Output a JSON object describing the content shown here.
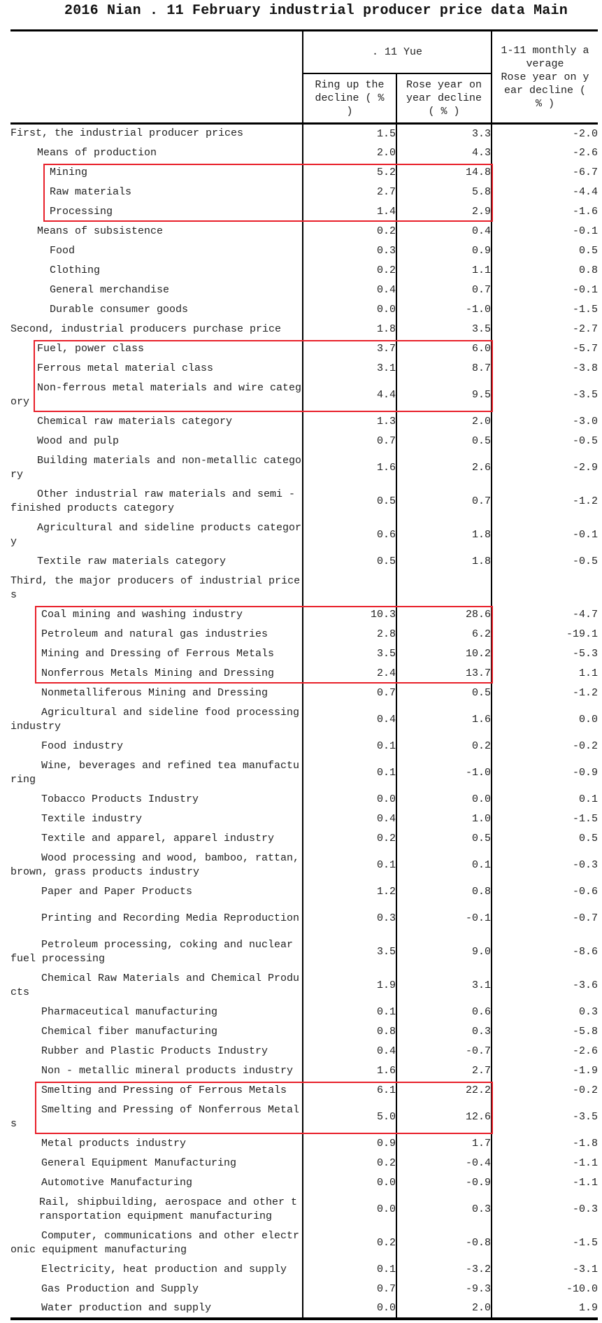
{
  "title": "2016 Nian . 11 February industrial producer price data Main",
  "header": {
    "month_group": ". 11 Yue",
    "col_mom": "Ring up the decline ( % )",
    "col_yoy": "Rose year on year decline ( % )",
    "col_avg_top": "1-11 monthly average",
    "col_avg_bottom": "Rose year on year decline ( % )"
  },
  "highlight_color": "#e8202a",
  "rows": [
    {
      "label": "First, the industrial producer prices",
      "level": 0,
      "mom": "1.5",
      "yoy": "3.3",
      "avg": "-2.0"
    },
    {
      "label": "Means of production",
      "level": 1,
      "mom": "2.0",
      "yoy": "4.3",
      "avg": "-2.6"
    },
    {
      "label": "Mining",
      "level": 2,
      "mom": "5.2",
      "yoy": "14.8",
      "avg": "-6.7",
      "highlight": 1
    },
    {
      "label": "Raw materials",
      "level": 2,
      "mom": "2.7",
      "yoy": "5.8",
      "avg": "-4.4",
      "highlight": 1
    },
    {
      "label": "Processing",
      "level": 2,
      "mom": "1.4",
      "yoy": "2.9",
      "avg": "-1.6",
      "highlight": 1
    },
    {
      "label": "Means of subsistence",
      "level": 1,
      "mom": "0.2",
      "yoy": "0.4",
      "avg": "-0.1"
    },
    {
      "label": "Food",
      "level": 2,
      "mom": "0.3",
      "yoy": "0.9",
      "avg": "0.5"
    },
    {
      "label": "Clothing",
      "level": 2,
      "mom": "0.2",
      "yoy": "1.1",
      "avg": "0.8"
    },
    {
      "label": "General merchandise",
      "level": 2,
      "mom": "0.4",
      "yoy": "0.7",
      "avg": "-0.1"
    },
    {
      "label": "Durable consumer goods",
      "level": 2,
      "mom": "0.0",
      "yoy": "-1.0",
      "avg": "-1.5"
    },
    {
      "label": "Second, industrial producers purchase price",
      "level": 0,
      "mom": "1.8",
      "yoy": "3.5",
      "avg": "-2.7"
    },
    {
      "label": "Fuel, power class",
      "level": 1,
      "mom": "3.7",
      "yoy": "6.0",
      "avg": "-5.7",
      "highlight": 2
    },
    {
      "label": "Ferrous metal material class",
      "level": 1,
      "mom": "3.1",
      "yoy": "8.7",
      "avg": "-3.8",
      "highlight": 2
    },
    {
      "label": "Non-ferrous metal materials and wire category",
      "level": 1,
      "mom": "4.4",
      "yoy": "9.5",
      "avg": "-3.5",
      "highlight": 2
    },
    {
      "label": "Chemical raw materials category",
      "level": 1,
      "mom": "1.3",
      "yoy": "2.0",
      "avg": "-3.0"
    },
    {
      "label": "Wood and pulp",
      "level": 1,
      "mom": "0.7",
      "yoy": "0.5",
      "avg": "-0.5"
    },
    {
      "label": "Building materials and non-metallic category",
      "level": 1,
      "mom": "1.6",
      "yoy": "2.6",
      "avg": "-2.9"
    },
    {
      "label": "Other industrial raw materials and semi - finished products category",
      "level": 1,
      "mom": "0.5",
      "yoy": "0.7",
      "avg": "-1.2"
    },
    {
      "label": "Agricultural and sideline products category",
      "level": 1,
      "mom": "0.6",
      "yoy": "1.8",
      "avg": "-0.1"
    },
    {
      "label": "Textile raw materials category",
      "level": 1,
      "mom": "0.5",
      "yoy": "1.8",
      "avg": "-0.5"
    },
    {
      "label": "Third, the major producers of industrial prices",
      "level": 0,
      "mom": "",
      "yoy": "",
      "avg": ""
    },
    {
      "label": "Coal mining and washing industry",
      "level": 3,
      "mom": "10.3",
      "yoy": "28.6",
      "avg": "-4.7",
      "highlight": 3
    },
    {
      "label": "Petroleum and natural gas industries",
      "level": 3,
      "mom": "2.8",
      "yoy": "6.2",
      "avg": "-19.1",
      "highlight": 3
    },
    {
      "label": "Mining and Dressing of Ferrous Metals",
      "level": 3,
      "mom": "3.5",
      "yoy": "10.2",
      "avg": "-5.3",
      "highlight": 3
    },
    {
      "label": "Nonferrous Metals Mining and Dressing",
      "level": 3,
      "mom": "2.4",
      "yoy": "13.7",
      "avg": "1.1",
      "highlight": 3
    },
    {
      "label": "Nonmetalliferous Mining and Dressing",
      "level": 3,
      "mom": "0.7",
      "yoy": "0.5",
      "avg": "-1.2"
    },
    {
      "label": "Agricultural and sideline food processing industry",
      "level": 3,
      "mom": "0.4",
      "yoy": "1.6",
      "avg": "0.0"
    },
    {
      "label": "Food industry",
      "level": 3,
      "mom": "0.1",
      "yoy": "0.2",
      "avg": "-0.2"
    },
    {
      "label": "Wine, beverages and refined tea manufacturing",
      "level": 3,
      "mom": "0.1",
      "yoy": "-1.0",
      "avg": "-0.9"
    },
    {
      "label": "Tobacco Products Industry",
      "level": 3,
      "mom": "0.0",
      "yoy": "0.0",
      "avg": "0.1"
    },
    {
      "label": "Textile industry",
      "level": 3,
      "mom": "0.4",
      "yoy": "1.0",
      "avg": "-1.5"
    },
    {
      "label": "Textile and apparel, apparel industry",
      "level": 3,
      "mom": "0.2",
      "yoy": "0.5",
      "avg": "0.5"
    },
    {
      "label": "Wood processing and wood, bamboo, rattan, brown, grass products industry",
      "level": 3,
      "mom": "0.1",
      "yoy": "0.1",
      "avg": "-0.3"
    },
    {
      "label": "Paper and Paper Products",
      "level": 3,
      "mom": "1.2",
      "yoy": "0.8",
      "avg": "-0.6"
    },
    {
      "label": "Printing and Recording Media Reproduction",
      "level": 3,
      "mom": "0.3",
      "yoy": "-0.1",
      "avg": "-0.7"
    },
    {
      "label": "Petroleum processing, coking and nuclear fuel processing",
      "level": 3,
      "mom": "3.5",
      "yoy": "9.0",
      "avg": "-8.6"
    },
    {
      "label": "Chemical Raw Materials and Chemical Products",
      "level": 3,
      "mom": "1.9",
      "yoy": "3.1",
      "avg": "-3.6"
    },
    {
      "label": "Pharmaceutical manufacturing",
      "level": 3,
      "mom": "0.1",
      "yoy": "0.6",
      "avg": "0.3"
    },
    {
      "label": "Chemical fiber manufacturing",
      "level": 3,
      "mom": "0.8",
      "yoy": "0.3",
      "avg": "-5.8"
    },
    {
      "label": "Rubber and Plastic Products Industry",
      "level": 3,
      "mom": "0.4",
      "yoy": "-0.7",
      "avg": "-2.6"
    },
    {
      "label": "Non - metallic mineral products industry",
      "level": 3,
      "mom": "1.6",
      "yoy": "2.7",
      "avg": "-1.9"
    },
    {
      "label": "Smelting and Pressing of Ferrous Metals",
      "level": 3,
      "mom": "6.1",
      "yoy": "22.2",
      "avg": "-0.2",
      "highlight": 4
    },
    {
      "label": "Smelting and Pressing of Nonferrous Metals",
      "level": 3,
      "mom": "5.0",
      "yoy": "12.6",
      "avg": "-3.5",
      "highlight": 4
    },
    {
      "label": "Metal products industry",
      "level": 3,
      "mom": "0.9",
      "yoy": "1.7",
      "avg": "-1.8"
    },
    {
      "label": "General Equipment Manufacturing",
      "level": 3,
      "mom": "0.2",
      "yoy": "-0.4",
      "avg": "-1.1"
    },
    {
      "label": "Automotive Manufacturing",
      "level": 3,
      "mom": "0.0",
      "yoy": "-0.9",
      "avg": "-1.1"
    },
    {
      "label": "Rail, shipbuilding, aerospace and other transportation equipment manufacturing",
      "level": 1,
      "mom": "0.0",
      "yoy": "0.3",
      "avg": "-0.3"
    },
    {
      "label": "Computer, communications and other electronic equipment manufacturing",
      "level": 3,
      "mom": "0.2",
      "yoy": "-0.8",
      "avg": "-1.5"
    },
    {
      "label": "Electricity, heat production and supply",
      "level": 3,
      "mom": "0.1",
      "yoy": "-3.2",
      "avg": "-3.1"
    },
    {
      "label": "Gas Production and Supply",
      "level": 3,
      "mom": "0.7",
      "yoy": "-9.3",
      "avg": "-10.0"
    },
    {
      "label": "Water production and supply",
      "level": 3,
      "mom": "0.0",
      "yoy": "2.0",
      "avg": "1.9"
    }
  ]
}
